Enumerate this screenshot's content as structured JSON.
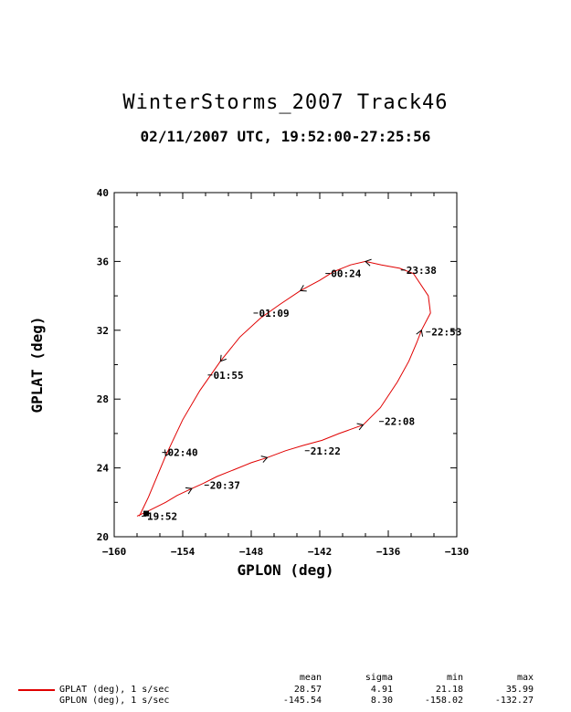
{
  "header": {
    "title": "WinterStorms_2007  Track46",
    "subtitle": "02/11/2007 UTC, 19:52:00-27:25:56"
  },
  "colors": {
    "track": "#e00000",
    "axis": "#000000"
  },
  "chart_data": {
    "type": "line",
    "title": "WinterStorms_2007  Track46",
    "subtitle": "02/11/2007 UTC, 19:52:00-27:25:56",
    "xlabel": "GPLON (deg)",
    "ylabel": "GPLAT (deg)",
    "xlim": [
      -160,
      -130
    ],
    "ylim": [
      20,
      40
    ],
    "xticks": [
      -160,
      -154,
      -148,
      -142,
      -136,
      -130
    ],
    "yticks": [
      20,
      24,
      28,
      32,
      36,
      40
    ],
    "grid": false,
    "series": [
      {
        "name": "GPLAT (deg), 1 s/sec",
        "x": [
          -158.0,
          -157.0,
          -155.5,
          -154.5,
          -153.2,
          -152.2,
          -151.0,
          -149.5,
          -148.0,
          -146.6,
          -145.0,
          -143.5,
          -141.8,
          -140.3,
          -138.2,
          -136.7,
          -135.2,
          -134.2,
          -133.5,
          -133.1,
          -132.3,
          -132.5,
          -133.8,
          -135.0,
          -136.6,
          -138.0,
          -139.3,
          -140.8,
          -142.0,
          -143.7,
          -145.5,
          -147.2,
          -149.0,
          -150.7,
          -152.5,
          -154.0,
          -155.5,
          -157.0,
          -157.8
        ],
        "y": [
          21.2,
          21.5,
          22.0,
          22.4,
          22.8,
          23.1,
          23.5,
          23.9,
          24.3,
          24.6,
          25.0,
          25.3,
          25.6,
          26.0,
          26.5,
          27.5,
          29.0,
          30.2,
          31.3,
          32.0,
          33.0,
          34.0,
          35.3,
          35.6,
          35.8,
          36.0,
          35.8,
          35.4,
          34.9,
          34.3,
          33.5,
          32.7,
          31.6,
          30.2,
          28.5,
          26.8,
          24.7,
          22.3,
          21.2
        ]
      }
    ],
    "annotations": [
      {
        "label": "19:52",
        "x": -157.2,
        "y": 21.2
      },
      {
        "label": "20:37",
        "x": -151.7,
        "y": 23.0
      },
      {
        "label": "21:22",
        "x": -142.9,
        "y": 25.0
      },
      {
        "label": "22:08",
        "x": -136.4,
        "y": 26.7
      },
      {
        "label": "22:53",
        "x": -132.3,
        "y": 31.9
      },
      {
        "label": "23:38",
        "x": -134.5,
        "y": 35.5
      },
      {
        "label": "00:24",
        "x": -141.1,
        "y": 35.3
      },
      {
        "label": "01:09",
        "x": -147.4,
        "y": 33.0
      },
      {
        "label": "01:55",
        "x": -151.4,
        "y": 29.4
      },
      {
        "label": "02:40",
        "x": -155.4,
        "y": 24.9
      }
    ]
  },
  "stats": {
    "headers": [
      "mean",
      "sigma",
      "min",
      "max"
    ],
    "rows": [
      {
        "label": "GPLAT (deg), 1 s/sec",
        "mean": "28.57",
        "sigma": "4.91",
        "min": "21.18",
        "max": "35.99"
      },
      {
        "label": "GPLON (deg), 1 s/sec",
        "mean": "-145.54",
        "sigma": "8.30",
        "min": "-158.02",
        "max": "-132.27"
      }
    ]
  }
}
